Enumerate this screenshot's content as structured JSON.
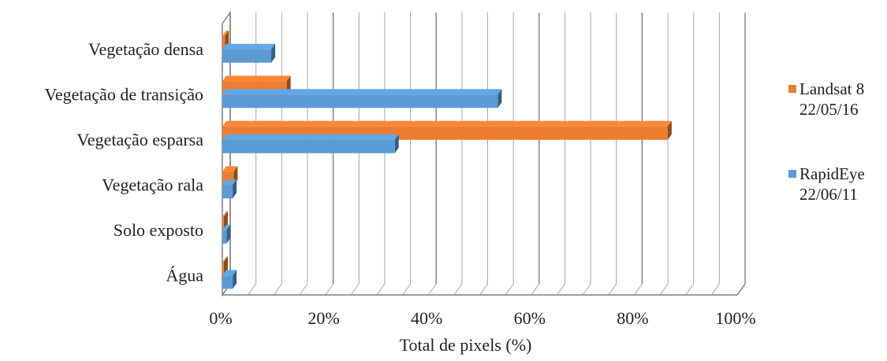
{
  "colors": {
    "landsat": "#ED7D31",
    "rapideye": "#5B9BD5",
    "grid": "#a6a6a6",
    "wall": "#7f7f7f"
  },
  "chart_data": {
    "type": "bar",
    "orientation": "horizontal",
    "style": "3d-clustered",
    "categories": [
      "Vegetação densa",
      "Vegetação de transição",
      "Vegetação esparsa",
      "Vegetação rala",
      "Solo exposto",
      "Água"
    ],
    "series": [
      {
        "name": "Landsat 8 22/05/16",
        "name_lines": [
          "Landsat 8",
          "22/05/16"
        ],
        "color": "#ED7D31",
        "values": [
          0.5,
          12.5,
          86.5,
          2.2,
          0.3,
          0.3
        ]
      },
      {
        "name": "RapidEye 22/06/11",
        "name_lines": [
          "RapidEye",
          "22/06/11"
        ],
        "color": "#5B9BD5",
        "values": [
          9.5,
          53.5,
          33.5,
          2.0,
          0.8,
          2.0
        ]
      }
    ],
    "xlabel": "Total de pixels (%)",
    "ylabel": "",
    "xlim": [
      0,
      100
    ],
    "xticks": [
      "0%",
      "20%",
      "40%",
      "60%",
      "80%",
      "100%"
    ],
    "grid": true,
    "legend": "right"
  }
}
